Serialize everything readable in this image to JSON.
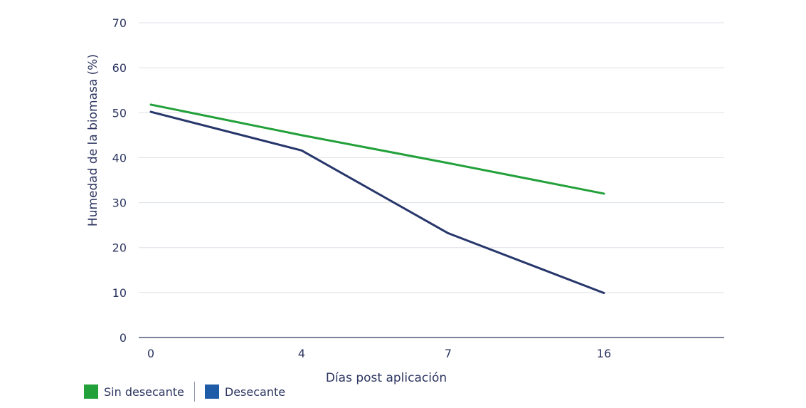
{
  "chart_data": {
    "type": "line",
    "categories": [
      "0",
      "4",
      "7",
      "16"
    ],
    "series": [
      {
        "name": "Sin desecante",
        "color": "#22a03a",
        "values": [
          51.8,
          45.0,
          38.8,
          32.0
        ]
      },
      {
        "name": "Desecante",
        "color": "#27366b",
        "values": [
          50.2,
          41.6,
          23.2,
          9.9
        ]
      }
    ],
    "xlabel": "Días post aplicación",
    "ylabel": "Humedad de la biomasa (%)",
    "yticks": [
      "0",
      "10",
      "20",
      "30",
      "40",
      "50",
      "60",
      "70"
    ],
    "ylim": [
      0,
      70
    ],
    "grid": true,
    "legend_position": "bottom-left",
    "legend_swatch_colors": [
      "#22a03a",
      "#1f5ca8"
    ]
  }
}
